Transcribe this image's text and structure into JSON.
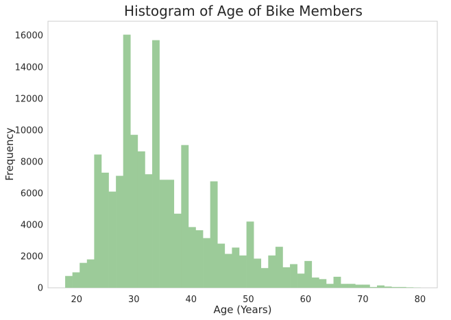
{
  "chart_data": {
    "type": "bar",
    "title": "Histogram of Age of Bike Members",
    "xlabel": "Age (Years)",
    "ylabel": "Frequency",
    "xlim": [
      15,
      83
    ],
    "ylim": [
      0,
      16900
    ],
    "x_ticks": [
      "20",
      "30",
      "40",
      "50",
      "60",
      "70",
      "80"
    ],
    "y_ticks": [
      "0",
      "2000",
      "4000",
      "6000",
      "8000",
      "10000",
      "12000",
      "14000",
      "16000"
    ],
    "grid": false,
    "bar_color": "#9ccb99",
    "bin_start": 18,
    "bin_width": 1.2667,
    "values": [
      750,
      980,
      1580,
      1800,
      8450,
      7300,
      6100,
      7100,
      16050,
      9700,
      8650,
      7200,
      15700,
      6850,
      6850,
      4700,
      9050,
      3850,
      3650,
      3150,
      6750,
      2800,
      2150,
      2550,
      2050,
      4200,
      1850,
      1250,
      2050,
      2600,
      1300,
      1500,
      900,
      1700,
      650,
      550,
      250,
      700,
      250,
      250,
      200,
      200,
      50,
      150,
      80,
      50,
      50,
      30,
      15
    ]
  }
}
